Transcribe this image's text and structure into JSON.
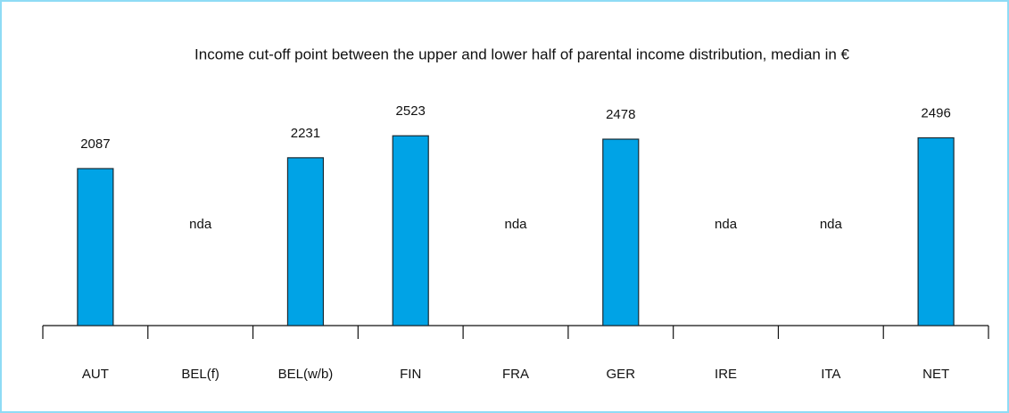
{
  "chart_data": {
    "type": "bar",
    "title": "Income cut-off point between the upper and lower half of parental income distribution, median in €",
    "categories": [
      "AUT",
      "BEL(f)",
      "BEL(w/b)",
      "FIN",
      "FRA",
      "GER",
      "IRE",
      "ITA",
      "NET"
    ],
    "values": [
      2087,
      null,
      2231,
      2523,
      null,
      2478,
      null,
      null,
      2496
    ],
    "value_labels": [
      "2087",
      "nda",
      "2231",
      "2523",
      "nda",
      "2478",
      "nda",
      "nda",
      "2496"
    ],
    "color": "#00a3e6",
    "ylim": [
      0,
      3000
    ]
  }
}
